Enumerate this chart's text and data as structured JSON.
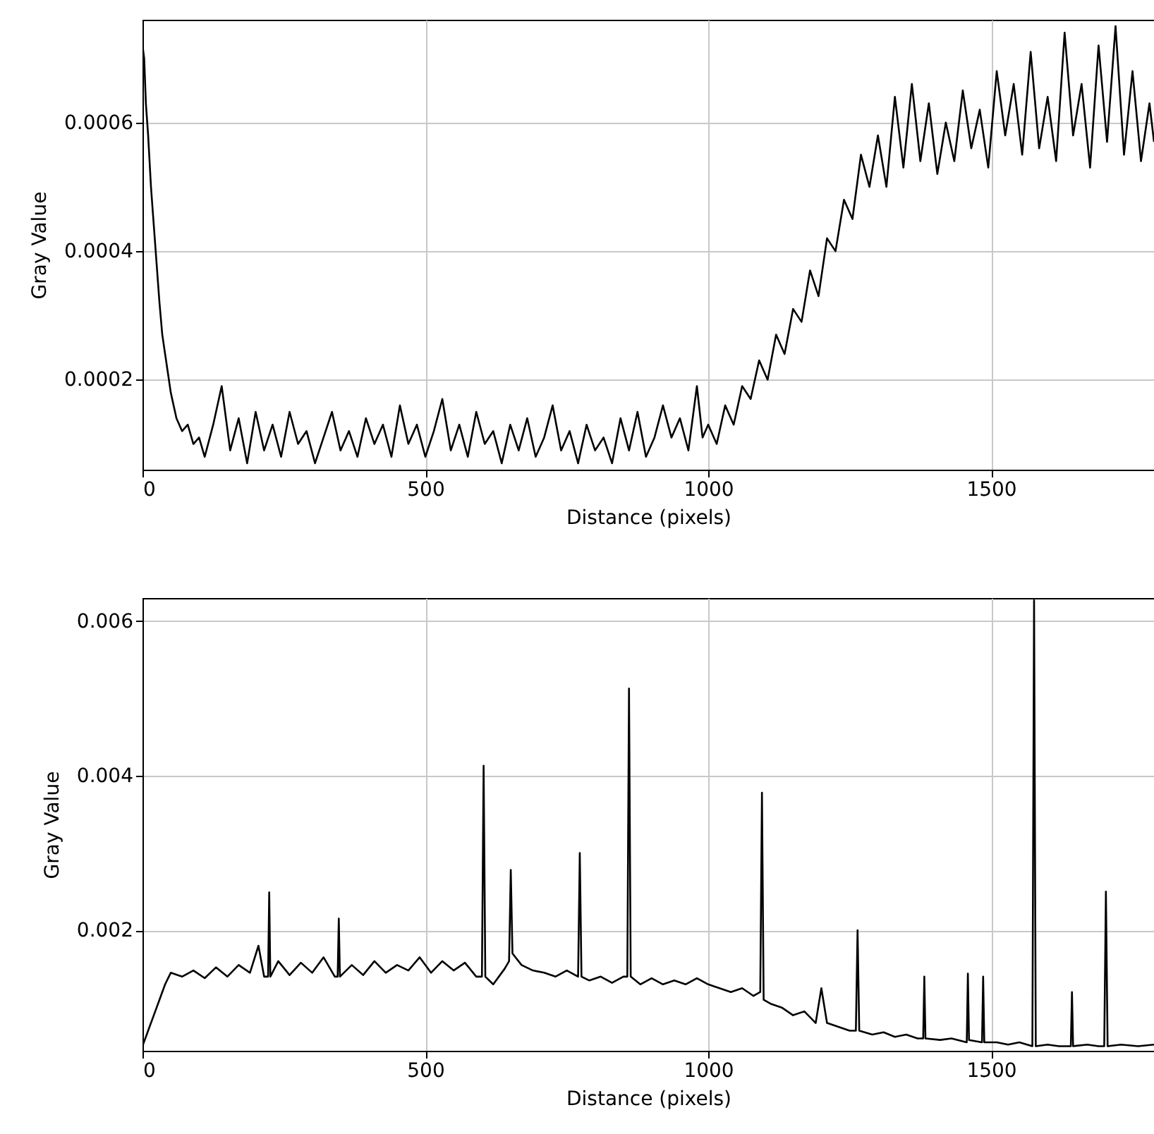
{
  "chart_data": [
    {
      "type": "line",
      "xlabel": "Distance (pixels)",
      "ylabel": "Gray Value",
      "xlim": [
        0,
        1788
      ],
      "ylim": [
        6e-05,
        0.00076
      ],
      "xticks": [
        0,
        500,
        1000,
        1500
      ],
      "yticks": [
        0.0002,
        0.0004,
        0.0006
      ],
      "grid": true,
      "line_style": "solid",
      "series": [
        {
          "color": "#000000",
          "x": [
            0,
            3,
            6,
            10,
            15,
            20,
            25,
            30,
            35,
            40,
            45,
            50,
            55,
            60,
            70,
            80,
            90,
            100,
            110,
            125,
            140,
            155,
            170,
            185,
            200,
            215,
            230,
            245,
            260,
            275,
            290,
            305,
            320,
            335,
            350,
            365,
            380,
            395,
            410,
            425,
            440,
            455,
            470,
            485,
            500,
            515,
            530,
            545,
            560,
            575,
            590,
            605,
            620,
            635,
            650,
            665,
            680,
            695,
            710,
            725,
            740,
            755,
            770,
            785,
            800,
            815,
            830,
            845,
            860,
            875,
            890,
            905,
            920,
            935,
            950,
            965,
            980,
            990,
            1000,
            1015,
            1030,
            1045,
            1060,
            1075,
            1090,
            1105,
            1120,
            1135,
            1150,
            1165,
            1180,
            1195,
            1210,
            1225,
            1240,
            1255,
            1270,
            1285,
            1300,
            1315,
            1330,
            1345,
            1360,
            1375,
            1390,
            1405,
            1420,
            1435,
            1450,
            1465,
            1480,
            1495,
            1510,
            1525,
            1540,
            1555,
            1570,
            1585,
            1600,
            1615,
            1630,
            1645,
            1660,
            1675,
            1690,
            1705,
            1720,
            1735,
            1750,
            1765,
            1780,
            1788
          ],
          "values": [
            0.00072,
            0.0007,
            0.00063,
            0.00058,
            0.0005,
            0.00044,
            0.00038,
            0.00032,
            0.00027,
            0.00024,
            0.00021,
            0.00018,
            0.00016,
            0.00014,
            0.00012,
            0.00013,
            0.0001,
            0.00011,
            8e-05,
            0.00013,
            0.00019,
            9e-05,
            0.00014,
            7e-05,
            0.00015,
            9e-05,
            0.00013,
            8e-05,
            0.00015,
            0.0001,
            0.00012,
            7e-05,
            0.00011,
            0.00015,
            9e-05,
            0.00012,
            8e-05,
            0.00014,
            0.0001,
            0.00013,
            8e-05,
            0.00016,
            0.0001,
            0.00013,
            8e-05,
            0.00012,
            0.00017,
            9e-05,
            0.00013,
            8e-05,
            0.00015,
            0.0001,
            0.00012,
            7e-05,
            0.00013,
            9e-05,
            0.00014,
            8e-05,
            0.00011,
            0.00016,
            9e-05,
            0.00012,
            7e-05,
            0.00013,
            9e-05,
            0.00011,
            7e-05,
            0.00014,
            9e-05,
            0.00015,
            8e-05,
            0.00011,
            0.00016,
            0.00011,
            0.00014,
            9e-05,
            0.00019,
            0.00011,
            0.00013,
            0.0001,
            0.00016,
            0.00013,
            0.00019,
            0.00017,
            0.00023,
            0.0002,
            0.00027,
            0.00024,
            0.00031,
            0.00029,
            0.00037,
            0.00033,
            0.00042,
            0.0004,
            0.00048,
            0.00045,
            0.00055,
            0.0005,
            0.00058,
            0.0005,
            0.00064,
            0.00053,
            0.00066,
            0.00054,
            0.00063,
            0.00052,
            0.0006,
            0.00054,
            0.00065,
            0.00056,
            0.00062,
            0.00053,
            0.00068,
            0.00058,
            0.00066,
            0.00055,
            0.00071,
            0.00056,
            0.00064,
            0.00054,
            0.00074,
            0.00058,
            0.00066,
            0.00053,
            0.00072,
            0.00057,
            0.00075,
            0.00055,
            0.00068,
            0.00054,
            0.00063,
            0.00057
          ]
        }
      ]
    },
    {
      "type": "line",
      "xlabel": "Distance (pixels)",
      "ylabel": "Gray Value",
      "xlim": [
        0,
        1788
      ],
      "ylim": [
        0.00044,
        0.0063
      ],
      "xticks": [
        0,
        500,
        1000,
        1500
      ],
      "yticks": [
        0.002,
        0.004,
        0.006
      ],
      "grid": true,
      "line_style": "solid",
      "series": [
        {
          "color": "#000000",
          "x": [
            0,
            10,
            20,
            30,
            40,
            50,
            70,
            90,
            110,
            130,
            150,
            170,
            190,
            205,
            215,
            222,
            224,
            226,
            240,
            260,
            280,
            300,
            320,
            340,
            345,
            347,
            349,
            370,
            390,
            410,
            430,
            450,
            470,
            490,
            510,
            530,
            550,
            570,
            590,
            600,
            603,
            606,
            620,
            640,
            648,
            651,
            654,
            670,
            690,
            710,
            730,
            750,
            770,
            773,
            776,
            790,
            810,
            830,
            850,
            857,
            860,
            863,
            880,
            900,
            920,
            940,
            960,
            980,
            1000,
            1020,
            1040,
            1060,
            1080,
            1092,
            1095,
            1098,
            1110,
            1130,
            1150,
            1170,
            1190,
            1200,
            1210,
            1230,
            1250,
            1261,
            1264,
            1267,
            1290,
            1310,
            1330,
            1350,
            1370,
            1380,
            1382,
            1384,
            1410,
            1430,
            1457,
            1459,
            1461,
            1484,
            1486,
            1488,
            1510,
            1530,
            1550,
            1573,
            1576,
            1579,
            1600,
            1620,
            1641,
            1643,
            1645,
            1670,
            1690,
            1700,
            1703,
            1706,
            1730,
            1760,
            1788
          ],
          "values": [
            0.0005,
            0.0007,
            0.0009,
            0.0011,
            0.0013,
            0.00145,
            0.0014,
            0.00148,
            0.00138,
            0.00152,
            0.0014,
            0.00155,
            0.00145,
            0.0018,
            0.0014,
            0.0014,
            0.00249,
            0.0014,
            0.0016,
            0.00142,
            0.00158,
            0.00145,
            0.00165,
            0.0014,
            0.0014,
            0.00215,
            0.0014,
            0.00155,
            0.00142,
            0.0016,
            0.00145,
            0.00155,
            0.00148,
            0.00165,
            0.00145,
            0.0016,
            0.00148,
            0.00158,
            0.0014,
            0.0014,
            0.00413,
            0.0014,
            0.0013,
            0.0015,
            0.0016,
            0.00278,
            0.0017,
            0.00155,
            0.00148,
            0.00145,
            0.0014,
            0.00148,
            0.0014,
            0.003,
            0.0014,
            0.00135,
            0.0014,
            0.00132,
            0.0014,
            0.0014,
            0.00513,
            0.0014,
            0.0013,
            0.00138,
            0.0013,
            0.00135,
            0.0013,
            0.00138,
            0.0013,
            0.00125,
            0.0012,
            0.00125,
            0.00115,
            0.0012,
            0.00378,
            0.0011,
            0.00105,
            0.001,
            0.0009,
            0.00095,
            0.0008,
            0.00125,
            0.0008,
            0.00075,
            0.0007,
            0.0007,
            0.002,
            0.0007,
            0.00065,
            0.00068,
            0.00062,
            0.00065,
            0.0006,
            0.0006,
            0.0014,
            0.0006,
            0.00058,
            0.0006,
            0.00055,
            0.00144,
            0.00058,
            0.00055,
            0.0014,
            0.00055,
            0.00055,
            0.00052,
            0.00055,
            0.0005,
            0.00627,
            0.0005,
            0.00052,
            0.0005,
            0.0005,
            0.0012,
            0.0005,
            0.00052,
            0.0005,
            0.0005,
            0.0025,
            0.0005,
            0.00052,
            0.0005,
            0.00052
          ]
        }
      ]
    }
  ]
}
